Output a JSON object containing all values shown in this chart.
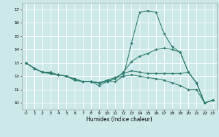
{
  "title": "",
  "xlabel": "Humidex (Indice chaleur)",
  "xlim": [
    -0.5,
    23.5
  ],
  "ylim": [
    9.5,
    17.5
  ],
  "yticks": [
    10,
    11,
    12,
    13,
    14,
    15,
    16,
    17
  ],
  "xticks": [
    0,
    1,
    2,
    3,
    4,
    5,
    6,
    7,
    8,
    9,
    10,
    11,
    12,
    13,
    14,
    15,
    16,
    17,
    18,
    19,
    20,
    21,
    22,
    23
  ],
  "background_color": "#cde8e8",
  "grid_color": "#ffffff",
  "line_color": "#2d7d6e",
  "lines": [
    [
      13.0,
      12.6,
      12.3,
      12.3,
      12.1,
      12.0,
      11.7,
      11.6,
      11.6,
      11.3,
      11.6,
      11.6,
      12.0,
      14.5,
      16.8,
      16.9,
      16.8,
      15.2,
      14.2,
      13.8,
      12.3,
      11.5,
      10.0,
      10.2
    ],
    [
      13.0,
      12.6,
      12.3,
      12.2,
      12.1,
      12.0,
      11.8,
      11.6,
      11.6,
      11.5,
      11.6,
      11.8,
      12.3,
      13.1,
      13.5,
      13.7,
      14.0,
      14.1,
      14.0,
      13.8,
      12.3,
      11.5,
      10.0,
      10.2
    ],
    [
      13.0,
      12.6,
      12.3,
      12.2,
      12.1,
      12.0,
      11.8,
      11.6,
      11.6,
      11.5,
      11.7,
      11.9,
      12.2,
      12.4,
      12.3,
      12.2,
      12.2,
      12.2,
      12.2,
      12.2,
      12.3,
      11.5,
      10.0,
      10.2
    ],
    [
      13.0,
      12.6,
      12.3,
      12.2,
      12.1,
      12.0,
      11.8,
      11.6,
      11.6,
      11.5,
      11.7,
      11.9,
      12.0,
      12.1,
      12.0,
      11.9,
      11.8,
      11.7,
      11.5,
      11.3,
      11.0,
      11.0,
      10.0,
      10.2
    ]
  ]
}
